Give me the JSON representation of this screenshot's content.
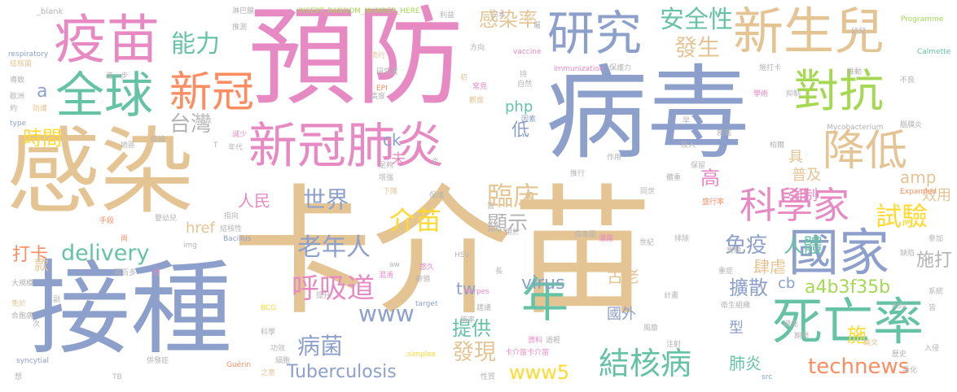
{
  "palette": {
    "tan": "#e5c494",
    "blue": "#8da0cb",
    "pink": "#e78ac3",
    "green": "#66c2a5",
    "orange": "#fc8d62",
    "lime": "#a6d854",
    "yellow": "#ffd92f",
    "grey": "#b3b3b3"
  },
  "words": [
    {
      "text": "卡介苗",
      "color": "tan"
    },
    {
      "text": "接種",
      "color": "blue"
    },
    {
      "text": "病毒",
      "color": "blue"
    },
    {
      "text": "預防",
      "color": "pink"
    },
    {
      "text": "感染",
      "color": "tan"
    },
    {
      "text": "疫苗",
      "color": "pink"
    },
    {
      "text": "研究",
      "color": "blue"
    },
    {
      "text": "新生兒",
      "color": "tan"
    },
    {
      "text": "全球",
      "color": "green"
    },
    {
      "text": "新冠",
      "color": "orange"
    },
    {
      "text": "新冠肺炎",
      "color": "pink"
    },
    {
      "text": "國家",
      "color": "blue"
    },
    {
      "text": "死亡率",
      "color": "green"
    },
    {
      "text": "對抗",
      "color": "lime"
    },
    {
      "text": "降低",
      "color": "tan"
    },
    {
      "text": "年",
      "color": "green"
    },
    {
      "text": "科學家",
      "color": "pink"
    },
    {
      "text": "結核病",
      "color": "green"
    },
    {
      "text": "呼吸道",
      "color": "pink"
    },
    {
      "text": "安全性",
      "color": "green"
    },
    {
      "text": "感染率",
      "color": "tan"
    },
    {
      "text": "發生",
      "color": "tan"
    },
    {
      "text": "能力",
      "color": "green"
    },
    {
      "text": "台灣",
      "color": "grey"
    },
    {
      "text": "時間",
      "color": "yellow"
    },
    {
      "text": "介苗",
      "color": "yellow"
    },
    {
      "text": "試驗",
      "color": "yellow"
    },
    {
      "text": "臨床",
      "color": "tan"
    },
    {
      "text": "世界",
      "color": "blue"
    },
    {
      "text": "顯示",
      "color": "grey"
    },
    {
      "text": "老年人",
      "color": "blue"
    },
    {
      "text": "打卡",
      "color": "orange"
    },
    {
      "text": "delivery",
      "color": "green"
    },
    {
      "text": "人民",
      "color": "pink"
    },
    {
      "text": "免疫",
      "color": "blue"
    },
    {
      "text": "人體",
      "color": "green"
    },
    {
      "text": "肆虐",
      "color": "tan"
    },
    {
      "text": "施打",
      "color": "grey"
    },
    {
      "text": "擴散",
      "color": "blue"
    },
    {
      "text": "提供",
      "color": "green"
    },
    {
      "text": "病菌",
      "color": "blue"
    },
    {
      "text": "發現",
      "color": "tan"
    },
    {
      "text": "Tuberculosis",
      "color": "blue"
    },
    {
      "text": "virus",
      "color": "blue"
    },
    {
      "text": "www",
      "color": "blue"
    },
    {
      "text": "www5",
      "color": "yellow"
    },
    {
      "text": "technews",
      "color": "orange"
    },
    {
      "text": "施",
      "color": "yellow"
    },
    {
      "text": "肺炎",
      "color": "green"
    },
    {
      "text": "a4b3f35b",
      "color": "lime"
    },
    {
      "text": "tw",
      "color": "blue"
    },
    {
      "text": "cb",
      "color": "blue"
    },
    {
      "text": "amp",
      "color": "tan"
    },
    {
      "text": "href",
      "color": "tan"
    },
    {
      "text": "php",
      "color": "green"
    },
    {
      "text": "ck",
      "color": "blue"
    },
    {
      "text": "a",
      "color": "blue"
    },
    {
      "text": "n",
      "color": "tan"
    },
    {
      "text": "低",
      "color": "blue"
    },
    {
      "text": "未",
      "color": "pink"
    },
    {
      "text": "高",
      "color": "pink"
    },
    {
      "text": "具",
      "color": "tan"
    },
    {
      "text": "型",
      "color": "blue"
    },
    {
      "text": "款",
      "color": "tan"
    },
    {
      "text": "普及",
      "color": "tan"
    },
    {
      "text": "強制",
      "color": "pink"
    },
    {
      "text": "效用",
      "color": "tan"
    },
    {
      "text": "古老",
      "color": "tan"
    },
    {
      "text": "國外",
      "color": "blue"
    },
    {
      "text": "_blank",
      "color": "grey"
    },
    {
      "text": "INSERT_RANDOM_NUMBER_HERE",
      "color": "lime"
    },
    {
      "text": "Programme",
      "color": "lime"
    },
    {
      "text": "Calmette",
      "color": "green"
    },
    {
      "text": "immunization",
      "color": "pink"
    },
    {
      "text": "respiratory",
      "color": "blue"
    },
    {
      "text": "Mycobacterium",
      "color": "grey"
    },
    {
      "text": "Expanded",
      "color": "orange"
    },
    {
      "text": "Bacillus",
      "color": "blue"
    },
    {
      "text": "BCG",
      "color": "yellow"
    },
    {
      "text": "syncytial",
      "color": "blue"
    },
    {
      "text": "Guérin",
      "color": "orange"
    },
    {
      "text": "simplex",
      "color": "yellow"
    },
    {
      "text": "herpes",
      "color": "pink"
    },
    {
      "text": "target",
      "color": "blue"
    },
    {
      "text": "vaccine",
      "color": "pink"
    },
    {
      "text": "EPI",
      "color": "orange"
    },
    {
      "text": "HSV",
      "color": "grey"
    },
    {
      "text": "RSV",
      "color": "grey"
    },
    {
      "text": "img",
      "color": "grey"
    },
    {
      "text": "aw",
      "color": "grey"
    },
    {
      "text": "src",
      "color": "blue"
    },
    {
      "text": "type",
      "color": "blue"
    },
    {
      "text": "TB",
      "color": "grey"
    },
    {
      "text": "T",
      "color": "grey"
    },
    {
      "text": "卡介苗卡介苗",
      "color": "pink"
    },
    {
      "text": "淋巴腺",
      "color": "grey"
    },
    {
      "text": "推測",
      "color": "grey"
    },
    {
      "text": "流行",
      "color": "tan"
    },
    {
      "text": "方向",
      "color": "grey"
    },
    {
      "text": "研究者",
      "color": "grey"
    },
    {
      "text": "利益",
      "color": "grey"
    },
    {
      "text": "日本",
      "color": "grey"
    },
    {
      "text": "幼兒",
      "color": "grey"
    },
    {
      "text": "推動",
      "color": "grey"
    },
    {
      "text": "結核菌",
      "color": "tan"
    },
    {
      "text": "導致",
      "color": "grey"
    },
    {
      "text": "歐洲",
      "color": "grey"
    },
    {
      "text": "防護",
      "color": "tan"
    },
    {
      "text": "進一步",
      "color": "grey"
    },
    {
      "text": "初",
      "color": "tan"
    },
    {
      "text": "常見",
      "color": "pink"
    },
    {
      "text": "觀察",
      "color": "tan"
    },
    {
      "text": "自然",
      "color": "grey"
    },
    {
      "text": "高度",
      "color": "grey"
    },
    {
      "text": "因素",
      "color": "blue"
    },
    {
      "text": "保護力",
      "color": "grey"
    },
    {
      "text": "施打卡",
      "color": "grey"
    },
    {
      "text": "抑制",
      "color": "grey"
    },
    {
      "text": "學術",
      "color": "pink"
    },
    {
      "text": "風險",
      "color": "grey"
    },
    {
      "text": "不良",
      "color": "grey"
    },
    {
      "text": "副",
      "color": "grey"
    },
    {
      "text": "疾病",
      "color": "grey"
    },
    {
      "text": "投入",
      "color": "grey"
    },
    {
      "text": "腦膜炎",
      "color": "grey"
    },
    {
      "text": "保留",
      "color": "grey"
    },
    {
      "text": "柏爾",
      "color": "grey"
    },
    {
      "text": "地區",
      "color": "grey"
    },
    {
      "text": "結論",
      "color": "grey"
    },
    {
      "text": "減少",
      "color": "pink"
    },
    {
      "text": "年代",
      "color": "grey"
    },
    {
      "text": "足夠",
      "color": "grey"
    },
    {
      "text": "增強",
      "color": "grey"
    },
    {
      "text": "下降",
      "color": "tan"
    },
    {
      "text": "作用",
      "color": "grey"
    },
    {
      "text": "推行",
      "color": "grey"
    },
    {
      "text": "體重",
      "color": "grey"
    },
    {
      "text": "同世",
      "color": "grey"
    },
    {
      "text": "盛行率",
      "color": "orange"
    },
    {
      "text": "手段",
      "color": "orange"
    },
    {
      "text": "嬰幼兒",
      "color": "grey"
    },
    {
      "text": "指向",
      "color": "grey"
    },
    {
      "text": "結核性",
      "color": "grey"
    },
    {
      "text": "保護",
      "color": "grey"
    },
    {
      "text": "用於",
      "color": "grey"
    },
    {
      "text": "病毒量",
      "color": "grey"
    },
    {
      "text": "濃霧",
      "color": "pink"
    },
    {
      "text": "世紀",
      "color": "grey"
    },
    {
      "text": "排除",
      "color": "grey"
    },
    {
      "text": "重症",
      "color": "grey"
    },
    {
      "text": "大規模",
      "color": "grey"
    },
    {
      "text": "兩百多",
      "color": "grey"
    },
    {
      "text": "首",
      "color": "pink"
    },
    {
      "text": "提升",
      "color": "grey"
    },
    {
      "text": "混淆",
      "color": "pink"
    },
    {
      "text": "帶領",
      "color": "grey"
    },
    {
      "text": "悠久",
      "color": "pink"
    },
    {
      "text": "衛生組織",
      "color": "grey"
    },
    {
      "text": "免於",
      "color": "tan"
    },
    {
      "text": "合胞病",
      "color": "grey"
    },
    {
      "text": "科學",
      "color": "grey"
    },
    {
      "text": "功效",
      "color": "grey"
    },
    {
      "text": "細胞",
      "color": "grey"
    },
    {
      "text": "建議",
      "color": "grey"
    },
    {
      "text": "稱率",
      "color": "grey"
    },
    {
      "text": "過輕",
      "color": "grey"
    },
    {
      "text": "資料",
      "color": "pink"
    },
    {
      "text": "注射",
      "color": "grey"
    },
    {
      "text": "論文",
      "color": "tan"
    },
    {
      "text": "歷史",
      "color": "grey"
    },
    {
      "text": "入侵",
      "color": "grey"
    },
    {
      "text": "惡化",
      "color": "grey"
    },
    {
      "text": "併發症",
      "color": "grey"
    },
    {
      "text": "性質",
      "color": "grey"
    },
    {
      "text": "缺陷",
      "color": "grey"
    },
    {
      "text": "系統",
      "color": "grey"
    },
    {
      "text": "想",
      "color": "grey"
    },
    {
      "text": "之意",
      "color": "tan"
    },
    {
      "text": "計畫",
      "color": "grey"
    },
    {
      "text": "避免",
      "color": "grey"
    },
    {
      "text": "期間",
      "color": "grey"
    },
    {
      "text": "參加",
      "color": "grey"
    },
    {
      "text": "實驗",
      "color": "grey"
    },
    {
      "text": "次",
      "color": "grey"
    },
    {
      "text": "約",
      "color": "grey"
    },
    {
      "text": "炎",
      "color": "grey"
    },
    {
      "text": "早",
      "color": "grey"
    },
    {
      "text": "持",
      "color": "grey"
    },
    {
      "text": "旨",
      "color": "grey"
    },
    {
      "text": "長",
      "color": "grey"
    },
    {
      "text": "皆",
      "color": "grey"
    },
    {
      "text": "尚",
      "color": "orange"
    },
    {
      "text": "屬",
      "color": "grey"
    }
  ]
}
